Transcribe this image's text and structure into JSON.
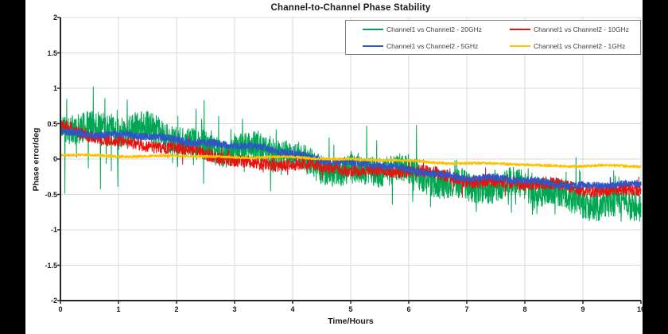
{
  "chart_data": {
    "type": "line",
    "title": "Channel-to-Channel Phase Stability",
    "xlabel": "Time/Hours",
    "ylabel": "Phase error/deg",
    "xlim": [
      0,
      10
    ],
    "ylim": [
      -2,
      2
    ],
    "x_ticks": [
      0,
      1,
      2,
      3,
      4,
      5,
      6,
      7,
      8,
      9,
      10
    ],
    "y_ticks": [
      2,
      1.5,
      1,
      0.5,
      0,
      -0.5,
      -1,
      -1.5,
      -2
    ],
    "grid": true,
    "grid_color": "#d9d9d9",
    "axis_color": "#262626",
    "legend_position": "top-right-inside",
    "legend_border_color": "#7f7f7f",
    "series": [
      {
        "name": "Channel1 vs Channel2 - 20GHz",
        "color": "#00a651",
        "trend": [
          [
            0,
            0.55
          ],
          [
            0.5,
            0.5
          ],
          [
            1,
            0.4
          ],
          [
            2,
            0.3
          ],
          [
            3,
            0.15
          ],
          [
            4,
            0.0
          ],
          [
            5,
            -0.13
          ],
          [
            6,
            -0.25
          ],
          [
            7,
            -0.33
          ],
          [
            8,
            -0.45
          ],
          [
            9,
            -0.55
          ],
          [
            10,
            -0.68
          ]
        ],
        "noise": 0.21,
        "spike_p": 0.055,
        "spike_amp": 0.5,
        "wander": 0.12,
        "early_spike_boost": 1.2,
        "seed": 11,
        "points": 2600,
        "width": 1
      },
      {
        "name": "Channel1 vs Channel2 - 10GHz",
        "color": "#e8120f",
        "trend": [
          [
            0,
            0.46
          ],
          [
            0.3,
            0.36
          ],
          [
            1,
            0.27
          ],
          [
            1.5,
            0.2
          ],
          [
            2,
            0.12
          ],
          [
            2.5,
            0.06
          ],
          [
            3,
            0.0
          ],
          [
            3.5,
            -0.06
          ],
          [
            4,
            -0.11
          ],
          [
            5,
            -0.13
          ],
          [
            6,
            -0.19
          ],
          [
            7,
            -0.28
          ],
          [
            8,
            -0.36
          ],
          [
            9,
            -0.41
          ],
          [
            10,
            -0.44
          ]
        ],
        "noise": 0.085,
        "spike_p": 0.03,
        "spike_amp": 0.16,
        "wander": 0.05,
        "early_spike_boost": 0,
        "seed": 22,
        "points": 2400,
        "width": 1
      },
      {
        "name": "Channel1 vs Channel2 - 5GHz",
        "color": "#2f55c6",
        "trend": [
          [
            0,
            0.4
          ],
          [
            1,
            0.33
          ],
          [
            2,
            0.28
          ],
          [
            3,
            0.2
          ],
          [
            4,
            0.07
          ],
          [
            5,
            -0.05
          ],
          [
            6,
            -0.16
          ],
          [
            7,
            -0.25
          ],
          [
            8,
            -0.32
          ],
          [
            9,
            -0.36
          ],
          [
            10,
            -0.38
          ]
        ],
        "noise": 0.05,
        "spike_p": 0.012,
        "spike_amp": 0.09,
        "wander": 0.035,
        "early_spike_boost": 0,
        "seed": 33,
        "points": 2200,
        "width": 1.3
      },
      {
        "name": "Channel1 vs Channel2 - 1GHz",
        "color": "#ffc000",
        "trend": [
          [
            0,
            0.05
          ],
          [
            2,
            0.04
          ],
          [
            4,
            0.02
          ],
          [
            5,
            0.0
          ],
          [
            6,
            -0.03
          ],
          [
            7,
            -0.06
          ],
          [
            8,
            -0.08
          ],
          [
            9,
            -0.1
          ],
          [
            10,
            -0.1
          ]
        ],
        "noise": 0.016,
        "spike_p": 0.005,
        "spike_amp": 0.03,
        "wander": 0.012,
        "early_spike_boost": 0,
        "seed": 44,
        "points": 2000,
        "width": 1.6
      }
    ]
  }
}
